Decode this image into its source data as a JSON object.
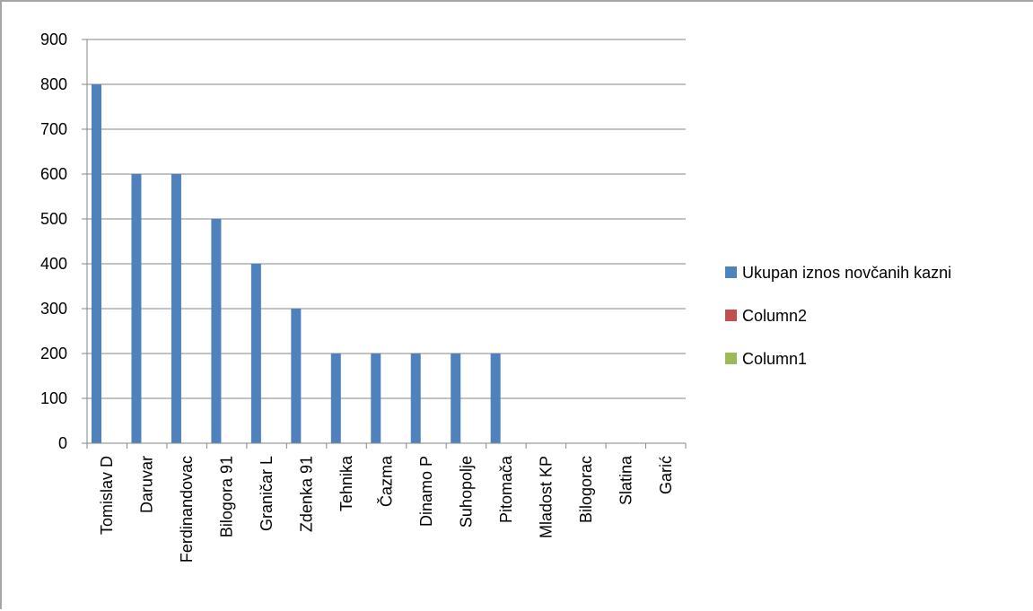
{
  "chart_data": {
    "type": "bar",
    "title": "",
    "xlabel": "",
    "ylabel": "",
    "ylim": [
      0,
      900
    ],
    "y_ticks": [
      0,
      100,
      200,
      300,
      400,
      500,
      600,
      700,
      800,
      900
    ],
    "grid": true,
    "legend_position": "right",
    "categories": [
      "Tomislav D",
      "Daruvar",
      "Ferdinandovac",
      "Bilogora 91",
      "Graničar L",
      "Zdenka 91",
      "Tehnika",
      "Čazma",
      "Dinamo P",
      "Suhopolje",
      "Pitomača",
      "Mladost KP",
      "Bilogorac",
      "Slatina",
      "Garić"
    ],
    "series": [
      {
        "name": "Ukupan iznos novčanih kazni",
        "color": "#4f81bd",
        "values": [
          800,
          600,
          600,
          500,
          400,
          300,
          200,
          200,
          200,
          200,
          200,
          0,
          0,
          0,
          0
        ]
      },
      {
        "name": "Column2",
        "color": "#c0504d",
        "values": [
          0,
          0,
          0,
          0,
          0,
          0,
          0,
          0,
          0,
          0,
          0,
          0,
          0,
          0,
          0
        ]
      },
      {
        "name": "Column1",
        "color": "#9bbb59",
        "values": [
          0,
          0,
          0,
          0,
          0,
          0,
          0,
          0,
          0,
          0,
          0,
          0,
          0,
          0,
          0
        ]
      }
    ]
  }
}
